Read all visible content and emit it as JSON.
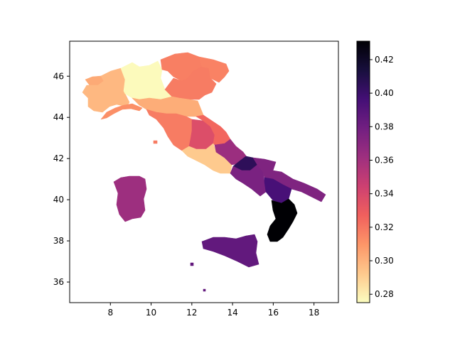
{
  "chart_data": {
    "type": "heatmap",
    "subtype": "choropleth-map",
    "title": "",
    "xlabel": "",
    "ylabel": "",
    "xlim": [
      6.0,
      19.2
    ],
    "ylim": [
      35.0,
      47.7
    ],
    "x_ticks": [
      8,
      10,
      12,
      14,
      16,
      18
    ],
    "y_ticks": [
      36,
      38,
      40,
      42,
      44,
      46
    ],
    "x_tick_labels": [
      "8",
      "10",
      "12",
      "14",
      "16",
      "18"
    ],
    "y_tick_labels": [
      "36",
      "38",
      "40",
      "42",
      "44",
      "46"
    ],
    "colormap": "magma_r",
    "colorbar": {
      "min": 0.275,
      "max": 0.431,
      "ticks": [
        0.28,
        0.3,
        0.32,
        0.34,
        0.36,
        0.38,
        0.4,
        0.42
      ],
      "tick_labels": [
        "0.28",
        "0.30",
        "0.32",
        "0.34",
        "0.36",
        "0.38",
        "0.40",
        "0.42"
      ],
      "orientation": "vertical",
      "placement": "right"
    },
    "stops": [
      "#fcfdbf",
      "#fec98d",
      "#fd9668",
      "#f1605d",
      "#cd4071",
      "#9e2f7f",
      "#721f81",
      "#440f76",
      "#180f3d",
      "#000004"
    ],
    "regions": [
      {
        "id": "valle-daosta",
        "value": 0.303
      },
      {
        "id": "piemonte",
        "value": 0.298
      },
      {
        "id": "liguria",
        "value": 0.312
      },
      {
        "id": "lombardia",
        "value": 0.276
      },
      {
        "id": "trentino-alto-adige",
        "value": 0.317
      },
      {
        "id": "veneto",
        "value": 0.318
      },
      {
        "id": "friuli-venezia-giulia",
        "value": 0.316
      },
      {
        "id": "emilia-romagna",
        "value": 0.302
      },
      {
        "id": "toscana",
        "value": 0.318
      },
      {
        "id": "umbria",
        "value": 0.337
      },
      {
        "id": "marche",
        "value": 0.325
      },
      {
        "id": "lazio",
        "value": 0.292
      },
      {
        "id": "abruzzo",
        "value": 0.363
      },
      {
        "id": "molise",
        "value": 0.405
      },
      {
        "id": "campania",
        "value": 0.376
      },
      {
        "id": "puglia",
        "value": 0.374
      },
      {
        "id": "basilicata",
        "value": 0.395
      },
      {
        "id": "calabria",
        "value": 0.431
      },
      {
        "id": "sicilia",
        "value": 0.385
      },
      {
        "id": "sardegna",
        "value": 0.362
      }
    ]
  }
}
